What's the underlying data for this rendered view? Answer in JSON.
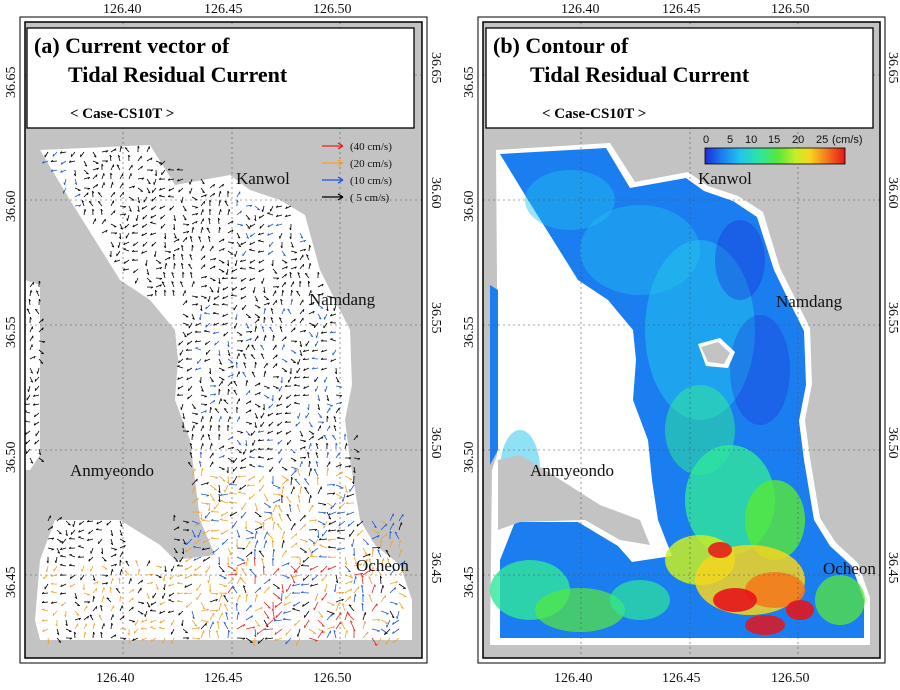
{
  "panel_a": {
    "title_line1": "(a) Current vector of",
    "title_line2": "Tidal Residual Current",
    "case_label": "< Case-CS10T >",
    "legend": [
      {
        "label": "(40 cm/s)",
        "color": "#e8231e"
      },
      {
        "label": "(20 cm/s)",
        "color": "#f2a32a"
      },
      {
        "label": "(10 cm/s)",
        "color": "#2056d8"
      },
      {
        "label": "( 5 cm/s)",
        "color": "#000000"
      }
    ]
  },
  "panel_b": {
    "title_line1": "(b) Contour of",
    "title_line2": "Tidal Residual Current",
    "case_label": "< Case-CS10T >",
    "colorbar": {
      "ticks": [
        "0",
        "5",
        "10",
        "15",
        "20",
        "25"
      ],
      "unit": "(cm/s)",
      "colors": [
        "#1e2bd6",
        "#1a7df0",
        "#22c4ee",
        "#2fe79a",
        "#57e83a",
        "#c7ee25",
        "#f6d51f",
        "#f47a1d",
        "#e5141b"
      ]
    }
  },
  "axes": {
    "lon_ticks": [
      "126.40",
      "126.45",
      "126.50"
    ],
    "lat_ticks": [
      "36.65",
      "36.60",
      "36.55",
      "36.50",
      "36.45"
    ]
  },
  "places": {
    "kanwol": "Kanwol",
    "namdang": "Namdang",
    "anmyeondo": "Anmyeondo",
    "ocheon": "Ocheon"
  },
  "colors": {
    "land": "#c3c3c3",
    "water_a": "#ffffff",
    "water_b_low": "#1a7df0",
    "frame": "#000000"
  }
}
